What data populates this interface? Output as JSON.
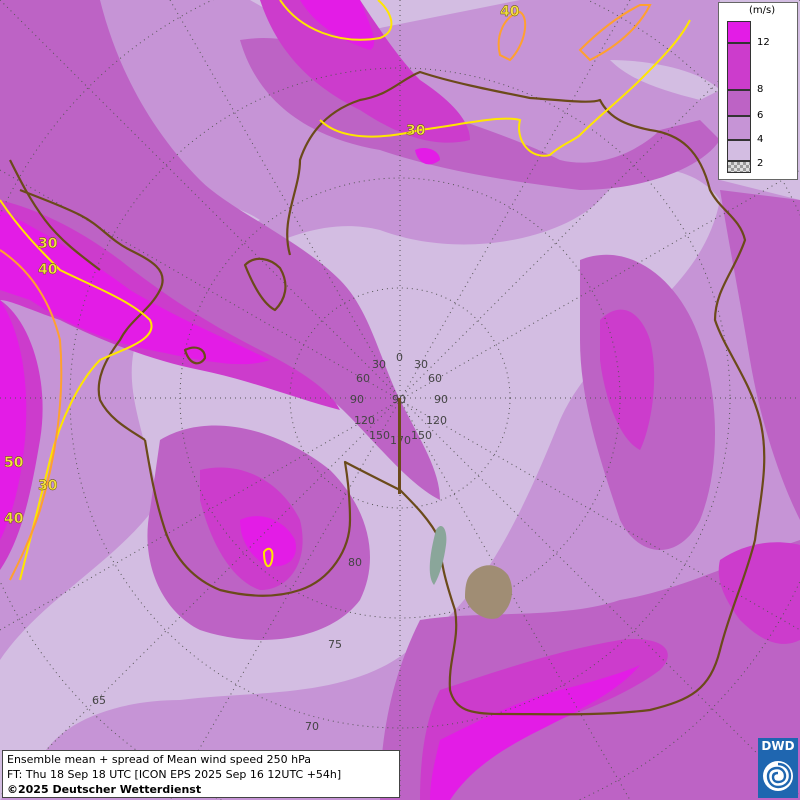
{
  "legend": {
    "unit": "(m/s)",
    "ticks": [
      "12",
      "8",
      "6",
      "4",
      "2"
    ],
    "colors": {
      "gt12": "#e31ce6",
      "8to12": "#cc3ccc",
      "6to8": "#bd63c5",
      "4to6": "#c694d6",
      "2to4": "#d3bde2",
      "lt2": "#aaaaaa"
    }
  },
  "contour_labels": [
    "40",
    "30",
    "30",
    "40",
    "50",
    "30",
    "40"
  ],
  "grid_labels": {
    "left_upper": [
      "30",
      "60",
      "90",
      "120",
      "150"
    ],
    "right_upper": [
      "30",
      "60",
      "90",
      "120",
      "150"
    ],
    "top_center": "0",
    "center_values": [
      "90",
      "170"
    ],
    "latitude": [
      "80",
      "75",
      "70",
      "65"
    ]
  },
  "info": {
    "line1": "Ensemble mean + spread of Mean wind speed 250 hPa",
    "line2": "FT: Thu 18 Sep 18 UTC [ICON EPS 2025 Sep 16 12UTC +54h]",
    "line3": "©2025 Deutscher Wetterdienst"
  },
  "logo": {
    "text": "DWD"
  },
  "colors": {
    "coast": "#6b4a1a",
    "contour_yellow": "#ffe600",
    "contour_orange": "#ffa030",
    "grid": "#555555",
    "ice": "#8aa69a",
    "land_patch": "#a08d74"
  }
}
